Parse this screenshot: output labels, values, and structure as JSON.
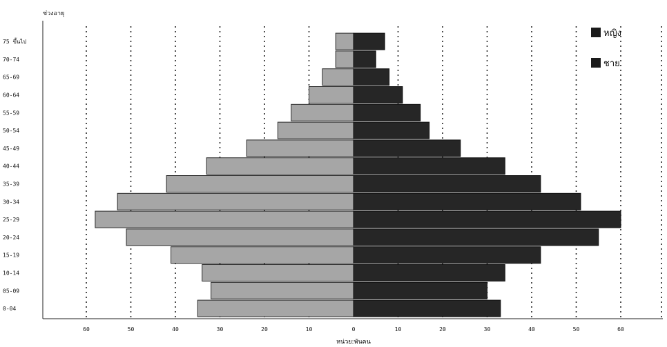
{
  "chart_data": {
    "type": "bar",
    "orientation": "horizontal-population-pyramid",
    "y_title": "ช่วงอายุ",
    "x_title": "หน่วย:พันคน",
    "categories": [
      "0-04",
      "05-09",
      "10-14",
      "15-19",
      "20-24",
      "25-29",
      "30-34",
      "35-39",
      "40-44",
      "45-49",
      "50-54",
      "55-59",
      "60-64",
      "65-69",
      "70-74",
      "75 ขึ้นไป"
    ],
    "series": [
      {
        "name": "หญิง",
        "side": "left",
        "color": "#a6a6a6",
        "values": [
          35,
          32,
          34,
          41,
          51,
          58,
          53,
          42,
          33,
          24,
          17,
          14,
          10,
          7,
          4,
          4
        ]
      },
      {
        "name": "ชาย",
        "side": "right",
        "color": "#262626",
        "values": [
          33,
          30,
          34,
          42,
          55,
          60,
          51,
          42,
          34,
          24,
          17,
          15,
          11,
          8,
          5,
          7
        ]
      }
    ],
    "x_ticks_left": [
      60,
      50,
      40,
      30,
      20,
      10
    ],
    "x_ticks_right": [
      0,
      10,
      20,
      30,
      40,
      50,
      60
    ],
    "xlim": [
      -60,
      60
    ],
    "grid": "vertical dotted",
    "legend_position": "top-right"
  }
}
